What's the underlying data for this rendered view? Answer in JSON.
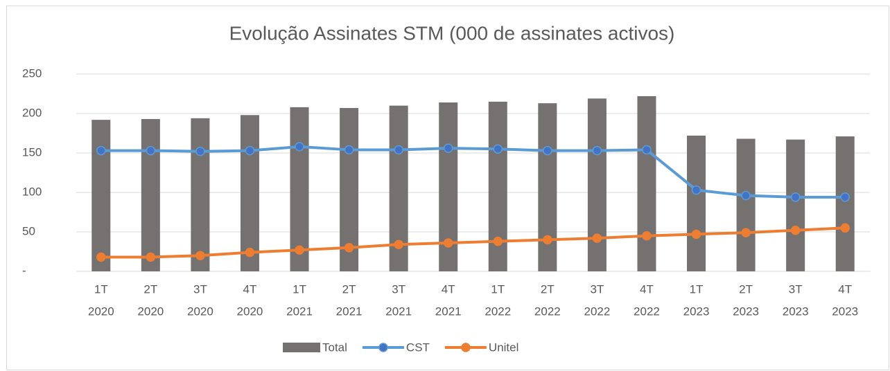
{
  "chart_data": {
    "type": "bar_line",
    "title": "Evolução Assinates STM (000 de assinates activos)",
    "categories": [
      [
        "1T",
        "2020"
      ],
      [
        "2T",
        "2020"
      ],
      [
        "3T",
        "2020"
      ],
      [
        "4T",
        "2020"
      ],
      [
        "1T",
        "2021"
      ],
      [
        "2T",
        "2021"
      ],
      [
        "3T",
        "2021"
      ],
      [
        "4T",
        "2021"
      ],
      [
        "1T",
        "2022"
      ],
      [
        "2T",
        "2022"
      ],
      [
        "3T",
        "2022"
      ],
      [
        "4T",
        "2022"
      ],
      [
        "1T",
        "2023"
      ],
      [
        "2T",
        "2023"
      ],
      [
        "3T",
        "2023"
      ],
      [
        "4T",
        "2023"
      ]
    ],
    "series": [
      {
        "name": "Total",
        "type": "bar",
        "color": "#767171",
        "values": [
          192,
          193,
          194,
          198,
          208,
          207,
          210,
          214,
          215,
          213,
          219,
          222,
          172,
          168,
          167,
          171
        ]
      },
      {
        "name": "CST",
        "type": "line",
        "color": "#5b9bd5",
        "marker_color": "#4472c4",
        "values": [
          153,
          153,
          152,
          153,
          158,
          154,
          154,
          156,
          155,
          153,
          153,
          154,
          103,
          96,
          94,
          94
        ]
      },
      {
        "name": "Unitel",
        "type": "line",
        "color": "#ed7d31",
        "marker_color": "#ed7d31",
        "values": [
          18,
          18,
          20,
          24,
          27,
          30,
          34,
          36,
          38,
          40,
          42,
          45,
          47,
          49,
          52,
          55
        ]
      }
    ],
    "ylim": [
      0,
      250
    ],
    "yticks": [
      {
        "value": 0,
        "label": "-"
      },
      50,
      100,
      150,
      200,
      250
    ],
    "grid": true,
    "legend": "bottom"
  }
}
